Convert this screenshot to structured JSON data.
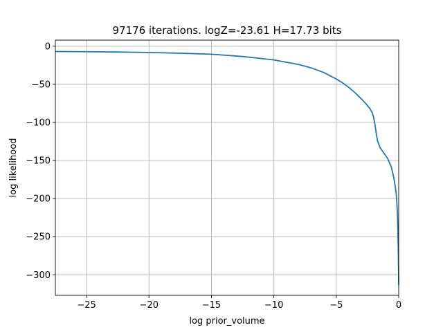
{
  "chart_data": {
    "type": "line",
    "title": "97176 iterations. logZ=-23.61 H=17.73 bits",
    "xlabel": "log prior_volume",
    "ylabel": "log likelihood",
    "xlim": [
      -27.5,
      0
    ],
    "ylim": [
      -327,
      8
    ],
    "grid": true,
    "x_ticks": [
      -25,
      -20,
      -15,
      -10,
      -5,
      0
    ],
    "y_ticks": [
      0,
      -50,
      -100,
      -150,
      -200,
      -250,
      -300
    ],
    "x_tick_labels": [
      "−25",
      "−20",
      "−15",
      "−10",
      "−5",
      "0"
    ],
    "y_tick_labels": [
      "0",
      "−50",
      "−100",
      "−150",
      "−200",
      "−250",
      "−300"
    ],
    "series": [
      {
        "color": "#1f77b4",
        "x": [
          -27.5,
          -25,
          -22.5,
          -20,
          -17.5,
          -15,
          -12.5,
          -10,
          -8,
          -7,
          -6,
          -5,
          -4.5,
          -4,
          -3.5,
          -3,
          -2.6,
          -2.3,
          -2.1,
          -2.0,
          -1.9,
          -1.8,
          -1.7,
          -1.5,
          -1.2,
          -0.9,
          -0.6,
          -0.4,
          -0.3,
          -0.2,
          -0.15,
          -0.1,
          -0.07,
          -0.05,
          -0.03,
          -0.02,
          -0.01,
          0
        ],
        "y": [
          -7,
          -7.2,
          -7.6,
          -8.2,
          -9.2,
          -10.5,
          -13.5,
          -18,
          -24,
          -28.5,
          -34.5,
          -43,
          -48,
          -54,
          -61,
          -69,
          -76,
          -82,
          -88,
          -94,
          -103,
          -114,
          -124,
          -133,
          -140,
          -147,
          -158,
          -172,
          -182,
          -193,
          -205,
          -220,
          -240,
          -255,
          -272,
          -285,
          -300,
          -313
        ]
      }
    ]
  }
}
